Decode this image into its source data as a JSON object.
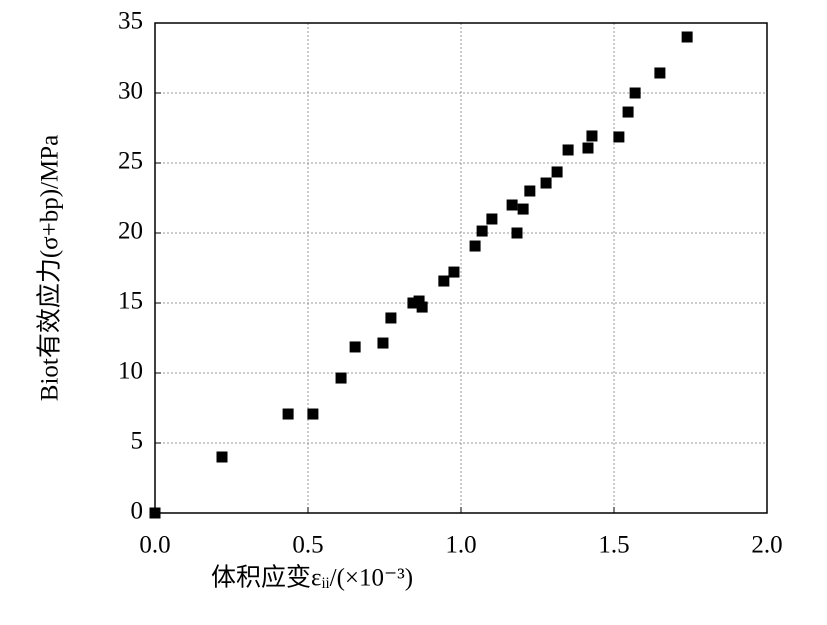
{
  "chart_data": {
    "type": "scatter",
    "x_label": "体积应变εᵢᵢ/(×10⁻³)",
    "y_label": "Biot有效应力(σ+bp)/MPa",
    "xlim": [
      0,
      2
    ],
    "ylim": [
      0,
      35
    ],
    "xticks": [
      {
        "value": 0,
        "label": "0.0"
      },
      {
        "value": 0.5,
        "label": "0.5"
      },
      {
        "value": 1,
        "label": "1.0"
      },
      {
        "value": 1.5,
        "label": "1.5"
      },
      {
        "value": 2,
        "label": "2.0"
      }
    ],
    "yticks": [
      0,
      5,
      10,
      15,
      20,
      25,
      30,
      35
    ],
    "grid": true,
    "color": "#000000",
    "x": [
      0,
      0.219,
      0.435,
      0.516,
      0.608,
      0.654,
      0.745,
      0.771,
      0.843,
      0.863,
      0.873,
      0.944,
      0.977,
      1.046,
      1.069,
      1.101,
      1.167,
      1.183,
      1.203,
      1.225,
      1.278,
      1.314,
      1.35,
      1.415,
      1.428,
      1.516,
      1.546,
      1.569,
      1.65,
      1.739
    ],
    "values": [
      0,
      4.0,
      7.07,
      7.07,
      9.64,
      11.86,
      12.14,
      13.93,
      15.0,
      15.14,
      14.71,
      16.57,
      17.21,
      19.07,
      20.14,
      21.0,
      22.0,
      20.0,
      21.71,
      23.0,
      23.57,
      24.36,
      25.93,
      26.07,
      26.93,
      26.86,
      28.64,
      30.0,
      31.43,
      34.0
    ]
  }
}
